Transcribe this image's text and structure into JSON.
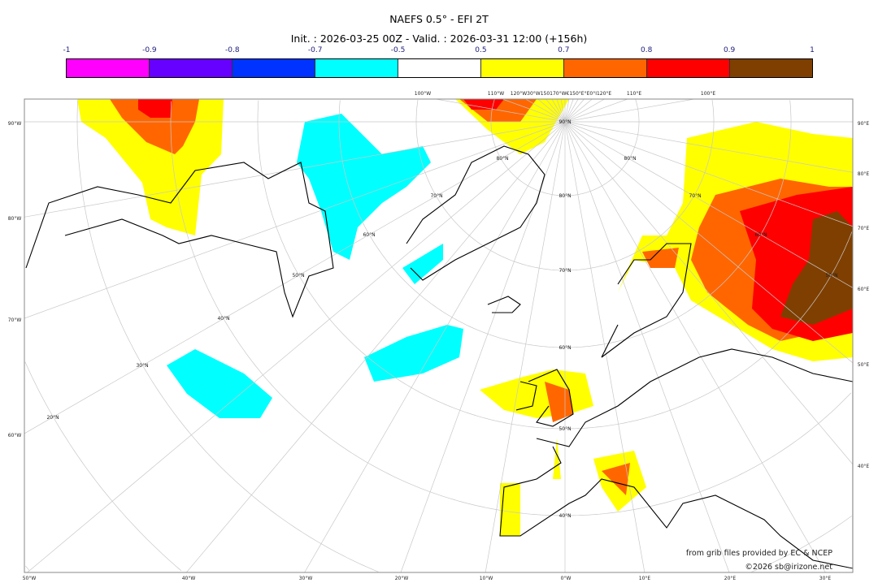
{
  "header": {
    "title": "NAEFS 0.5° - EFI 2T",
    "subtitle": "Init. : 2026-03-25 00Z - Valid. : 2026-03-31 12:00 (+156h)"
  },
  "colorbar": {
    "ticks": [
      "-1",
      "-0.9",
      "-0.8",
      "-0.7",
      "-0.5",
      "0.5",
      "0.7",
      "0.8",
      "0.9",
      "1"
    ],
    "colors": [
      "#ff00ff",
      "#6600ff",
      "#0033ff",
      "#00ffff",
      "#ffffff",
      "#ffff00",
      "#ff6600",
      "#ff0000",
      "#7f3f00"
    ]
  },
  "axes": {
    "left": [
      "90°W",
      "80°W",
      "70°W",
      "60°W"
    ],
    "right": [
      "90°E",
      "80°E",
      "70°E",
      "60°E",
      "50°E",
      "40°E"
    ],
    "bottom": [
      "50°W",
      "40°W",
      "30°W",
      "20°W",
      "10°W",
      "0°W",
      "10°E",
      "20°E",
      "30°E"
    ],
    "top": [
      "100°W",
      "110°W",
      "120°W30°W150170°W€150°E°E0°I120°E",
      "110°E",
      "100°E"
    ],
    "latitudes": [
      "90°N",
      "80°N",
      "80°N",
      "70°N",
      "80°N",
      "70°N",
      "60°N",
      "60°N",
      "50°N",
      "70°N",
      "50°N",
      "40°N",
      "60°N",
      "30°N",
      "50°N",
      "20°N",
      "40°N"
    ]
  },
  "credits": {
    "source": "from grib files provided by EC & NCEP",
    "copyright": "©2026 sb@irizone.net"
  }
}
